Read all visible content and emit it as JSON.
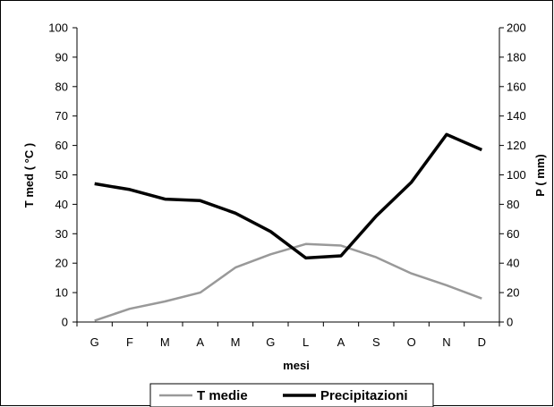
{
  "chart_data": {
    "type": "line",
    "title": "",
    "xlabel": "mesi",
    "ylabel_left": "T med ( °C )",
    "ylabel_right": "P ( mm)",
    "categories": [
      "G",
      "F",
      "M",
      "A",
      "M",
      "G",
      "L",
      "A",
      "S",
      "O",
      "N",
      "D"
    ],
    "y_left_lim": [
      0,
      100
    ],
    "y_left_ticks": [
      0,
      10,
      20,
      30,
      40,
      50,
      60,
      70,
      80,
      90,
      100
    ],
    "y_right_lim": [
      0,
      200
    ],
    "y_right_ticks": [
      0,
      20,
      40,
      60,
      80,
      100,
      120,
      140,
      160,
      180,
      200
    ],
    "grid": false,
    "legend_position": "bottom",
    "series": [
      {
        "name": "T medie",
        "axis": "left",
        "color": "#999999",
        "values": [
          0.5,
          4.5,
          7,
          10,
          18.5,
          23,
          26.5,
          26,
          22,
          16.5,
          12.5,
          8
        ]
      },
      {
        "name": "Precipitazioni",
        "axis": "right",
        "color": "#000000",
        "values": [
          94,
          90,
          83.5,
          82.5,
          74,
          61.5,
          43.5,
          45,
          72,
          95,
          127.5,
          117
        ]
      }
    ]
  }
}
